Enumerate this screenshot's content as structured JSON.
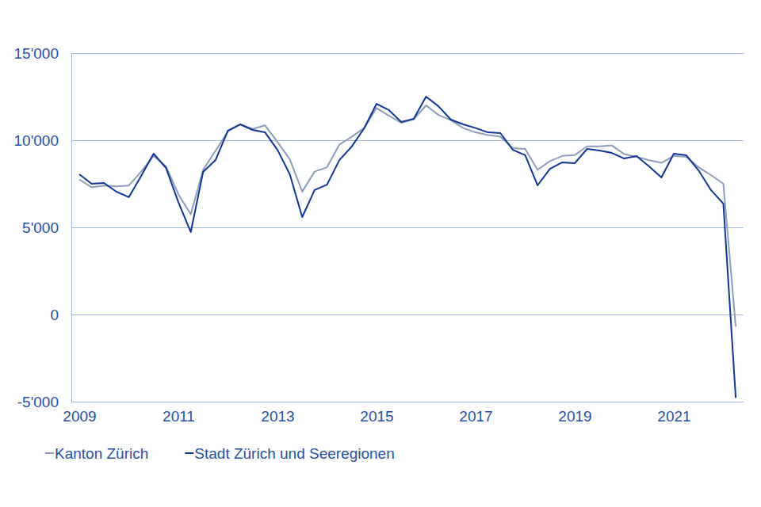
{
  "chart_data": {
    "type": "line",
    "x": [
      2009,
      2009.25,
      2009.5,
      2009.75,
      2010,
      2010.25,
      2010.5,
      2010.75,
      2011,
      2011.25,
      2011.5,
      2011.75,
      2012,
      2012.25,
      2012.5,
      2012.75,
      2013,
      2013.25,
      2013.5,
      2013.75,
      2014,
      2014.25,
      2014.5,
      2014.75,
      2015,
      2015.25,
      2015.5,
      2015.75,
      2016,
      2016.25,
      2016.5,
      2016.75,
      2017,
      2017.25,
      2017.5,
      2017.75,
      2018,
      2018.25,
      2018.5,
      2018.75,
      2019,
      2019.25,
      2019.5,
      2019.75,
      2020,
      2020.25,
      2020.5,
      2020.75,
      2021,
      2021.25,
      2021.5,
      2021.75,
      2022,
      2022.25
    ],
    "xlim": [
      2008.84,
      2022.4
    ],
    "xticks": [
      2009,
      2011,
      2013,
      2015,
      2017,
      2019,
      2021
    ],
    "ylim": [
      -5000,
      15000
    ],
    "yticks": [
      {
        "value": -5000,
        "label": "-5'000"
      },
      0,
      {
        "value": 5000,
        "label": "5'000"
      },
      {
        "value": 10000,
        "label": "10'000"
      },
      {
        "value": 15000,
        "label": "15'000"
      }
    ],
    "grid": true,
    "legend": "bottom",
    "series": [
      {
        "name": "Kanton Zürich",
        "color": "#8d9db8",
        "values": [
          7750,
          7300,
          7400,
          7350,
          7400,
          8200,
          9100,
          8500,
          6900,
          5750,
          8300,
          9400,
          10500,
          10900,
          10650,
          10850,
          9900,
          8900,
          7050,
          8200,
          8450,
          9750,
          10200,
          10700,
          11850,
          11400,
          11000,
          11200,
          12000,
          11450,
          11150,
          10700,
          10450,
          10300,
          10200,
          9550,
          9500,
          8300,
          8800,
          9100,
          9150,
          9650,
          9650,
          9700,
          9200,
          9050,
          8850,
          8700,
          9100,
          9050,
          8450,
          8000,
          7500,
          -700
        ]
      },
      {
        "name": "Stadt Zürich und Seeregionen",
        "color": "#0f3596",
        "values": [
          8045,
          7500,
          7545,
          7045,
          6730,
          7950,
          9230,
          8410,
          6450,
          4730,
          8180,
          8860,
          10550,
          10910,
          10590,
          10450,
          9450,
          8045,
          5590,
          7140,
          7450,
          8860,
          9640,
          10680,
          12090,
          11730,
          11045,
          11230,
          12500,
          11950,
          11180,
          10910,
          10700,
          10450,
          10410,
          9450,
          9140,
          7410,
          8360,
          8730,
          8680,
          9500,
          9410,
          9270,
          8950,
          9090,
          8500,
          7860,
          9230,
          9140,
          8270,
          7140,
          6360,
          -4780
        ]
      }
    ]
  }
}
